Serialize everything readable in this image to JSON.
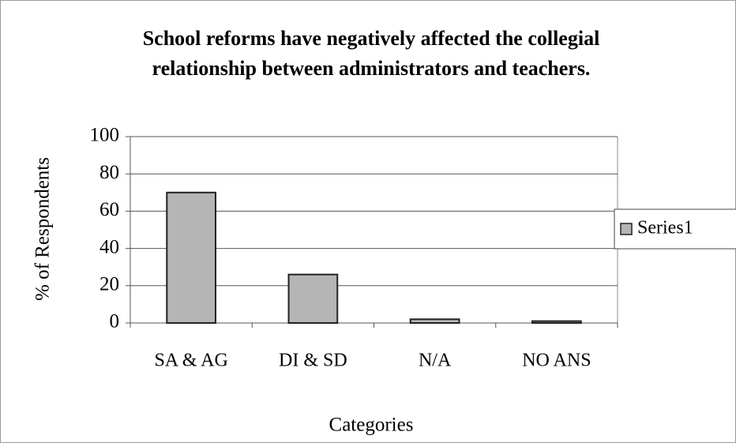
{
  "chart_data": {
    "type": "bar",
    "title": "School reforms have negatively affected the collegial relationship between administrators and teachers.",
    "x_label": "Categories",
    "y_label": "% of Respondents",
    "categories": [
      "SA & AG",
      "DI & SD",
      "N/A",
      "NO ANS"
    ],
    "series": [
      {
        "name": "Series1",
        "color": "#b5b5b5",
        "values": [
          70,
          26,
          2,
          1
        ]
      }
    ],
    "ylim": [
      0,
      100
    ],
    "yticks": [
      0,
      20,
      40,
      60,
      80,
      100
    ],
    "grid": true,
    "legend": "right"
  }
}
